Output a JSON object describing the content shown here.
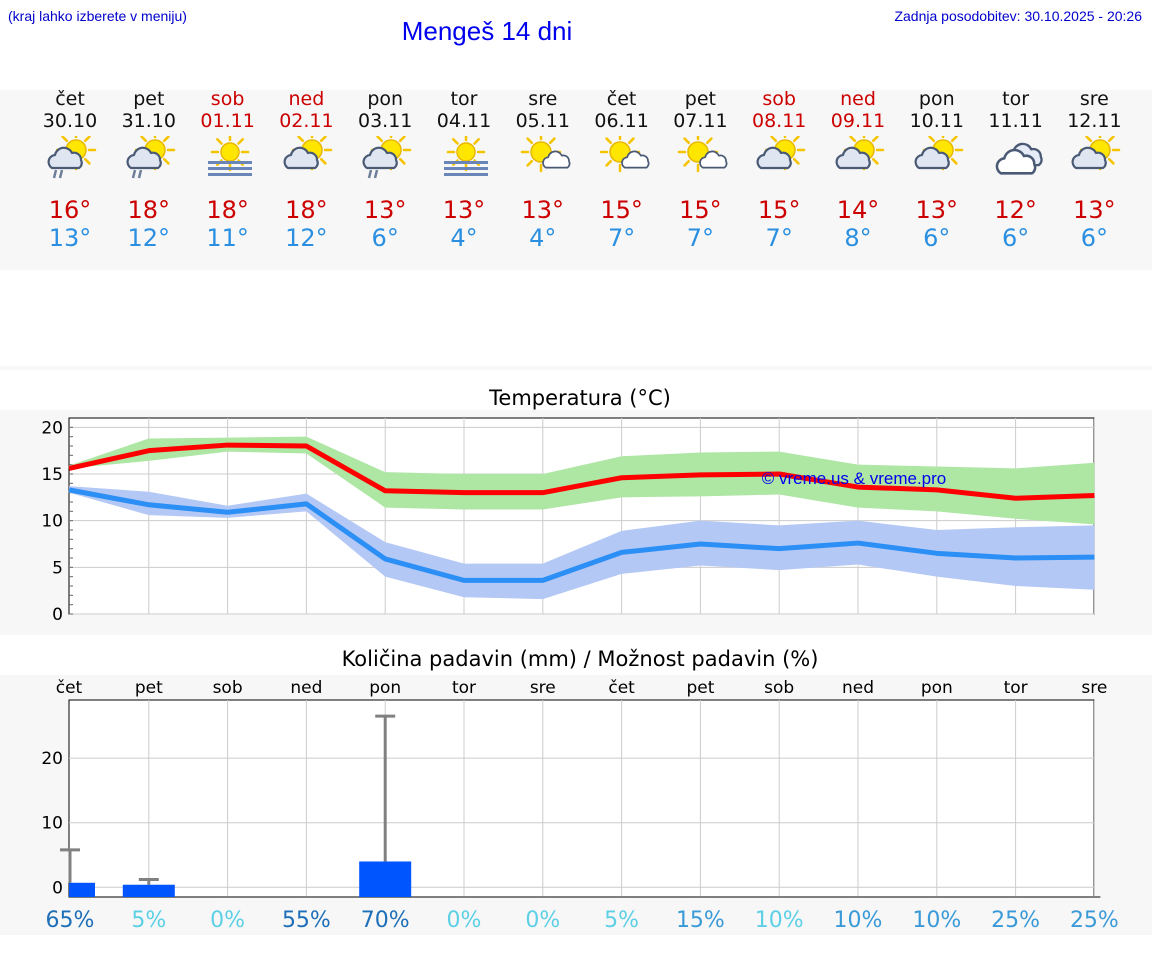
{
  "header": {
    "left_note": "(kraj lahko izberete v meniju)",
    "title": "Mengeš 14 dni",
    "updated": "Zadnja posodobitev: 30.10.2025 - 20:26"
  },
  "days": [
    {
      "name": "čet",
      "date": "30.10",
      "weekend": false,
      "icon": "sun-cloud-rain-icon",
      "tmax": "16°",
      "tmin": "13°"
    },
    {
      "name": "pet",
      "date": "31.10",
      "weekend": false,
      "icon": "sun-cloud-rain-icon",
      "tmax": "18°",
      "tmin": "12°"
    },
    {
      "name": "sob",
      "date": "01.11",
      "weekend": true,
      "icon": "sun-fog-icon",
      "tmax": "18°",
      "tmin": "11°"
    },
    {
      "name": "ned",
      "date": "02.11",
      "weekend": true,
      "icon": "sun-cloud-icon",
      "tmax": "18°",
      "tmin": "12°"
    },
    {
      "name": "pon",
      "date": "03.11",
      "weekend": false,
      "icon": "sun-cloud-rain-icon",
      "tmax": "13°",
      "tmin": "6°"
    },
    {
      "name": "tor",
      "date": "04.11",
      "weekend": false,
      "icon": "sun-fog-icon",
      "tmax": "13°",
      "tmin": "4°"
    },
    {
      "name": "sre",
      "date": "05.11",
      "weekend": false,
      "icon": "sun-small-cloud-icon",
      "tmax": "13°",
      "tmin": "4°"
    },
    {
      "name": "čet",
      "date": "06.11",
      "weekend": false,
      "icon": "sun-small-cloud-icon",
      "tmax": "15°",
      "tmin": "7°"
    },
    {
      "name": "pet",
      "date": "07.11",
      "weekend": false,
      "icon": "sun-small-cloud-icon",
      "tmax": "15°",
      "tmin": "7°"
    },
    {
      "name": "sob",
      "date": "08.11",
      "weekend": true,
      "icon": "sun-cloud-icon",
      "tmax": "15°",
      "tmin": "7°"
    },
    {
      "name": "ned",
      "date": "09.11",
      "weekend": true,
      "icon": "sun-cloud-icon",
      "tmax": "14°",
      "tmin": "8°"
    },
    {
      "name": "pon",
      "date": "10.11",
      "weekend": false,
      "icon": "sun-cloud-icon",
      "tmax": "13°",
      "tmin": "6°"
    },
    {
      "name": "tor",
      "date": "11.11",
      "weekend": false,
      "icon": "cloudy-icon",
      "tmax": "12°",
      "tmin": "6°"
    },
    {
      "name": "sre",
      "date": "12.11",
      "weekend": false,
      "icon": "sun-cloud-icon",
      "tmax": "13°",
      "tmin": "6°"
    }
  ],
  "chart_data": [
    {
      "type": "line",
      "title": "Temperatura (°C)",
      "watermark": "© vreme.us & vreme.pro",
      "ylim": [
        0,
        21
      ],
      "yticks": [
        0,
        5,
        10,
        15,
        20
      ],
      "x": [
        0,
        1,
        2,
        3,
        4,
        5,
        6,
        7,
        8,
        9,
        10,
        11,
        12,
        13
      ],
      "series": [
        {
          "name": "max",
          "color": "#ff0000",
          "values": [
            15.6,
            17.5,
            18.1,
            18.0,
            13.2,
            13.0,
            13.0,
            14.6,
            14.9,
            15.0,
            13.6,
            13.3,
            12.4,
            12.7
          ],
          "band_low": [
            15.6,
            16.4,
            17.4,
            17.2,
            11.4,
            11.2,
            11.2,
            12.5,
            12.6,
            12.8,
            11.4,
            11.0,
            10.2,
            9.6
          ],
          "band_high": [
            15.9,
            18.8,
            18.9,
            19.0,
            15.2,
            15.0,
            15.0,
            16.9,
            17.3,
            17.4,
            16.0,
            15.8,
            15.6,
            16.2
          ],
          "band_color": "#aee6a4"
        },
        {
          "name": "min",
          "color": "#2b8ff5",
          "values": [
            13.3,
            11.7,
            10.9,
            11.8,
            5.9,
            3.6,
            3.6,
            6.6,
            7.5,
            7.0,
            7.6,
            6.5,
            6.0,
            6.1
          ],
          "band_low": [
            13.0,
            10.6,
            10.3,
            11.0,
            4.0,
            1.8,
            1.6,
            4.3,
            5.2,
            4.7,
            5.3,
            4.0,
            3.0,
            2.6
          ],
          "band_high": [
            13.7,
            13.1,
            11.6,
            12.9,
            7.7,
            5.4,
            5.4,
            8.9,
            10.0,
            9.5,
            10.0,
            9.0,
            9.3,
            9.5
          ],
          "band_color": "#b4c8f5"
        }
      ]
    },
    {
      "type": "bar",
      "title": "Količina padavin (mm) / Možnost padavin (%)",
      "categories": [
        "čet",
        "pet",
        "sob",
        "ned",
        "pon",
        "tor",
        "sre",
        "čet",
        "pet",
        "sob",
        "ned",
        "pon",
        "tor",
        "sre"
      ],
      "ylim": [
        -1.5,
        29
      ],
      "yticks": [
        0,
        10,
        20
      ],
      "values": [
        0.7,
        0.4,
        0,
        0,
        4.0,
        0,
        0,
        0,
        0,
        0,
        0,
        0,
        0,
        0
      ],
      "error_high": [
        5.8,
        1.2,
        0,
        0,
        26.5,
        0,
        0,
        0,
        0,
        0,
        0,
        0,
        0,
        0
      ],
      "bar_color": "#0055ff",
      "probability": [
        "65%",
        "5%",
        "0%",
        "55%",
        "70%",
        "0%",
        "0%",
        "5%",
        "15%",
        "10%",
        "10%",
        "10%",
        "25%",
        "25%"
      ],
      "probability_colors": [
        "#1f6fb8",
        "#5dd0e6",
        "#5dd0e6",
        "#1f6fb8",
        "#1f6fb8",
        "#5dd0e6",
        "#5dd0e6",
        "#5dd0e6",
        "#3a9ad8",
        "#5dd0e6",
        "#3a9ad8",
        "#3a9ad8",
        "#3a9ad8",
        "#3a9ad8"
      ]
    }
  ]
}
